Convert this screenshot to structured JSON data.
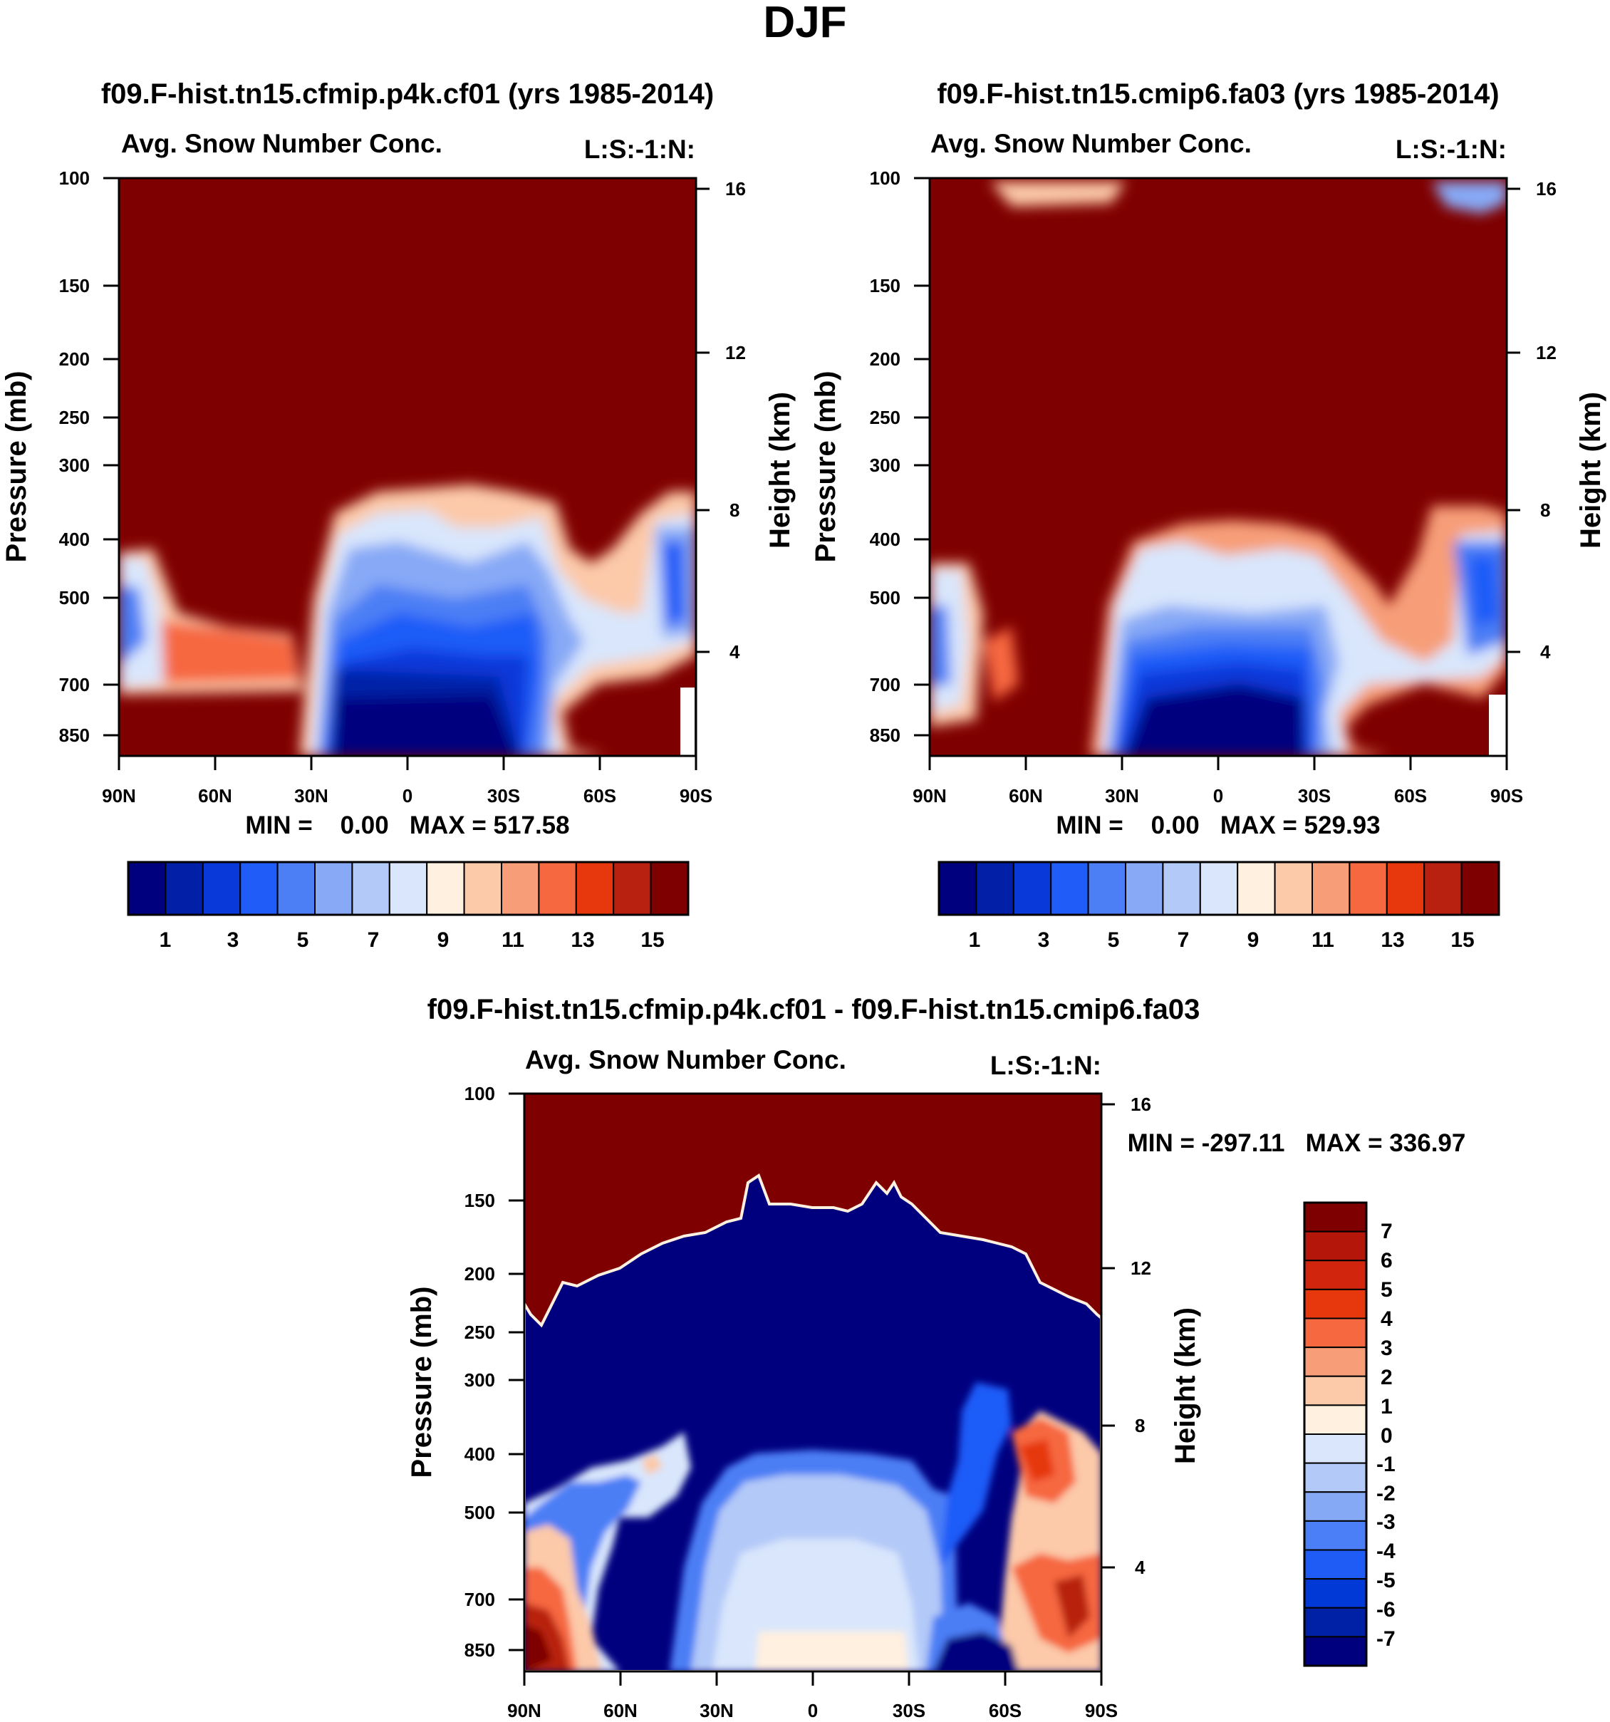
{
  "season_title": "DJF",
  "colors": {
    "diverging_15": [
      "#00007f",
      "#0220a7",
      "#0a39d9",
      "#1f5cf8",
      "#4c7ef5",
      "#87a9f6",
      "#b3c9f8",
      "#d9e6fc",
      "#fff0df",
      "#fcc9a9",
      "#f79e78",
      "#f6683f",
      "#e6370d",
      "#b8200f",
      "#7f0000"
    ],
    "diverging_16": [
      "#00007f",
      "#0020a6",
      "#0039d6",
      "#1e5cf5",
      "#4b7ff7",
      "#86a9f6",
      "#b3c9f8",
      "#d9e6fc",
      "#fff0df",
      "#fcc9a9",
      "#f79e78",
      "#f6683f",
      "#e6370d",
      "#d1250e",
      "#b5160a",
      "#7f0000"
    ]
  },
  "chart_data": [
    {
      "type": "contour",
      "panel_id": "cf01",
      "title": "f09.F-hist.tn15.cfmip.p4k.cf01 (yrs 1985-2014)",
      "left_label": "Avg. Snow Number Conc.",
      "right_label": "L:S:-1:N:",
      "ylabel": "Pressure (mb)",
      "ylabel_right": "Height (km)",
      "x_ticks": [
        "90N",
        "60N",
        "30N",
        "0",
        "30S",
        "60S",
        "90S"
      ],
      "xlim": [
        90,
        -90
      ],
      "y_ticks": [
        100,
        150,
        200,
        250,
        300,
        400,
        500,
        700,
        850
      ],
      "height_ticks": [
        16,
        12,
        8,
        4
      ],
      "stats_text": "MIN =    0.00   MAX = 517.58",
      "min": 0.0,
      "max": 517.58,
      "colorbar_labels": [
        "1",
        "3",
        "5",
        "7",
        "9",
        "11",
        "13",
        "15"
      ],
      "colorbar_orientation": "horizontal"
    },
    {
      "type": "contour",
      "panel_id": "fa03",
      "title": "f09.F-hist.tn15.cmip6.fa03 (yrs 1985-2014)",
      "left_label": "Avg. Snow Number Conc.",
      "right_label": "L:S:-1:N:",
      "ylabel": "Pressure (mb)",
      "ylabel_right": "Height (km)",
      "x_ticks": [
        "90N",
        "60N",
        "30N",
        "0",
        "30S",
        "60S",
        "90S"
      ],
      "xlim": [
        90,
        -90
      ],
      "y_ticks": [
        100,
        150,
        200,
        250,
        300,
        400,
        500,
        700,
        850
      ],
      "height_ticks": [
        16,
        12,
        8,
        4
      ],
      "stats_text": "MIN =    0.00   MAX = 529.93",
      "min": 0.0,
      "max": 529.93,
      "colorbar_labels": [
        "1",
        "3",
        "5",
        "7",
        "9",
        "11",
        "13",
        "15"
      ],
      "colorbar_orientation": "horizontal"
    },
    {
      "type": "contour",
      "panel_id": "diff",
      "title": "f09.F-hist.tn15.cfmip.p4k.cf01 - f09.F-hist.tn15.cmip6.fa03",
      "left_label": "Avg. Snow Number Conc.",
      "right_label": "L:S:-1:N:",
      "ylabel": "Pressure (mb)",
      "ylabel_right": "Height (km)",
      "x_ticks": [
        "90N",
        "60N",
        "30N",
        "0",
        "30S",
        "60S",
        "90S"
      ],
      "xlim": [
        90,
        -90
      ],
      "y_ticks": [
        100,
        150,
        200,
        250,
        300,
        400,
        500,
        700,
        850
      ],
      "height_ticks": [
        16,
        12,
        8,
        4
      ],
      "stats_text": "MIN = -297.11   MAX = 336.97",
      "min": -297.11,
      "max": 336.97,
      "colorbar_labels": [
        "7",
        "6",
        "5",
        "4",
        "3",
        "2",
        "1",
        "0",
        "-1",
        "-2",
        "-3",
        "-4",
        "-5",
        "-6",
        "-7"
      ],
      "colorbar_orientation": "vertical"
    }
  ]
}
